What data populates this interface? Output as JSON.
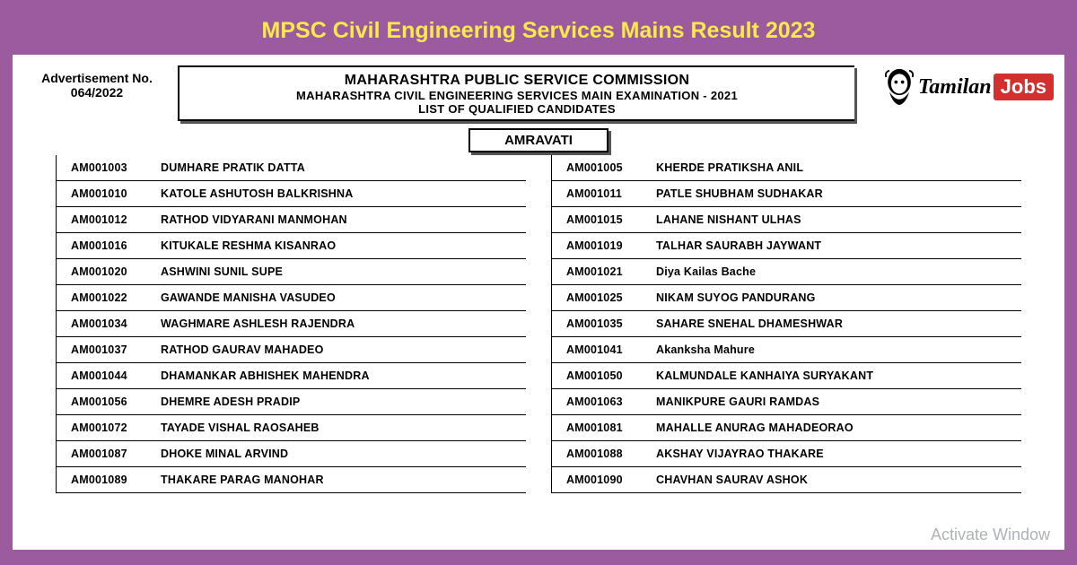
{
  "page_title": "MPSC Civil Engineering Services Mains Result 2023",
  "advertisement": {
    "label": "Advertisement No.",
    "number": "064/2022"
  },
  "header": {
    "line1": "MAHARASHTRA PUBLIC SERVICE COMMISSION",
    "line2": "MAHARASHTRA CIVIL ENGINEERING SERVICES MAIN EXAMINATION - 2021",
    "line3": "LIST OF QUALIFIED CANDIDATES"
  },
  "district": "AMRAVATI",
  "logo": {
    "text1": "Tamilan",
    "text2": "Jobs"
  },
  "candidates_left": [
    {
      "roll": "AM001003",
      "name": "DUMHARE PRATIK DATTA"
    },
    {
      "roll": "AM001010",
      "name": "KATOLE ASHUTOSH BALKRISHNA"
    },
    {
      "roll": "AM001012",
      "name": "RATHOD VIDYARANI MANMOHAN"
    },
    {
      "roll": "AM001016",
      "name": "KITUKALE RESHMA KISANRAO"
    },
    {
      "roll": "AM001020",
      "name": "ASHWINI SUNIL SUPE"
    },
    {
      "roll": "AM001022",
      "name": "GAWANDE MANISHA VASUDEO"
    },
    {
      "roll": "AM001034",
      "name": "WAGHMARE ASHLESH RAJENDRA"
    },
    {
      "roll": "AM001037",
      "name": "RATHOD GAURAV MAHADEO"
    },
    {
      "roll": "AM001044",
      "name": "DHAMANKAR ABHISHEK MAHENDRA"
    },
    {
      "roll": "AM001056",
      "name": "DHEMRE ADESH PRADIP"
    },
    {
      "roll": "AM001072",
      "name": "TAYADE VISHAL RAOSAHEB"
    },
    {
      "roll": "AM001087",
      "name": "DHOKE MINAL ARVIND"
    },
    {
      "roll": "AM001089",
      "name": "THAKARE PARAG MANOHAR"
    }
  ],
  "candidates_right": [
    {
      "roll": "AM001005",
      "name": "KHERDE PRATIKSHA ANIL"
    },
    {
      "roll": "AM001011",
      "name": "PATLE SHUBHAM SUDHAKAR"
    },
    {
      "roll": "AM001015",
      "name": "LAHANE NISHANT ULHAS"
    },
    {
      "roll": "AM001019",
      "name": "TALHAR SAURABH JAYWANT"
    },
    {
      "roll": "AM001021",
      "name": "Diya Kailas Bache"
    },
    {
      "roll": "AM001025",
      "name": "NIKAM SUYOG PANDURANG"
    },
    {
      "roll": "AM001035",
      "name": "SAHARE SNEHAL DHAMESHWAR"
    },
    {
      "roll": "AM001041",
      "name": "Akanksha Mahure"
    },
    {
      "roll": "AM001050",
      "name": "KALMUNDALE KANHAIYA SURYAKANT"
    },
    {
      "roll": "AM001063",
      "name": "MANIKPURE GAURI RAMDAS"
    },
    {
      "roll": "AM001081",
      "name": "MAHALLE ANURAG MAHADEORAO"
    },
    {
      "roll": "AM001088",
      "name": "AKSHAY VIJAYRAO THAKARE"
    },
    {
      "roll": "AM001090",
      "name": "CHAVHAN SAURAV ASHOK"
    }
  ],
  "watermark": "Activate Window",
  "colors": {
    "page_bg": "#9b5b9e",
    "title_color": "#f9e949",
    "border": "#000000",
    "jobs_bg": "#d32f2f"
  }
}
